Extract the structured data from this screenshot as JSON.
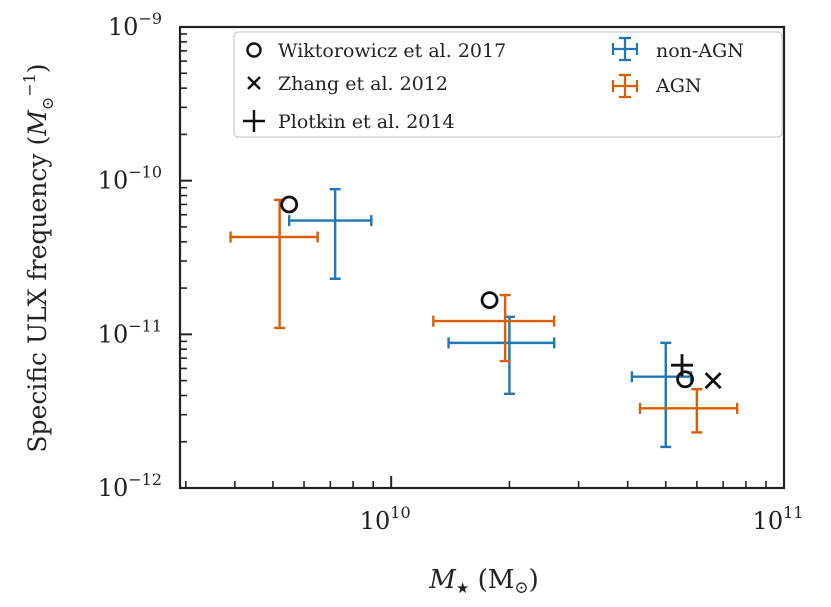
{
  "chart_data": {
    "type": "scatter",
    "title": "",
    "xlabel": "M★ (M⊙)",
    "ylabel": "Specific ULX frequency (M⊙⁻¹)",
    "xscale": "log",
    "yscale": "log",
    "xlim": [
      2900000000.0,
      100000000000.0
    ],
    "ylim": [
      1e-12,
      1e-09
    ],
    "x_ticks": [
      {
        "value": 10000000000.0,
        "label": "10",
        "exp": "10"
      },
      {
        "value": 100000000000.0,
        "label": "10",
        "exp": "11"
      }
    ],
    "y_ticks": [
      {
        "value": 1e-12,
        "label": "10",
        "exp": "−12"
      },
      {
        "value": 1e-11,
        "label": "10",
        "exp": "−11"
      },
      {
        "value": 1e-10,
        "label": "10",
        "exp": "−10"
      },
      {
        "value": 1e-09,
        "label": "10",
        "exp": "−9"
      }
    ],
    "series": [
      {
        "name": "non-AGN",
        "kind": "errorbar",
        "color": "#1f77b4",
        "points": [
          {
            "x": 7200000000.0,
            "xlo": 5500000000.0,
            "xhi": 8900000000.0,
            "y": 5.5e-11,
            "ylo": 2.3e-11,
            "yhi": 8.8e-11
          },
          {
            "x": 20000000000.0,
            "xlo": 14000000000.0,
            "xhi": 26000000000.0,
            "y": 8.8e-12,
            "ylo": 4.1e-12,
            "yhi": 1.3e-11
          },
          {
            "x": 50000000000.0,
            "xlo": 41000000000.0,
            "xhi": 58000000000.0,
            "y": 5.3e-12,
            "ylo": 1.85e-12,
            "yhi": 8.8e-12
          }
        ]
      },
      {
        "name": "AGN",
        "kind": "errorbar",
        "color": "#d95f02",
        "points": [
          {
            "x": 5200000000.0,
            "xlo": 3900000000.0,
            "xhi": 6500000000.0,
            "y": 4.3e-11,
            "ylo": 1.1e-11,
            "yhi": 7.5e-11
          },
          {
            "x": 19500000000.0,
            "xlo": 12800000000.0,
            "xhi": 26000000000.0,
            "y": 1.22e-11,
            "ylo": 6.7e-12,
            "yhi": 1.8e-11
          },
          {
            "x": 60000000000.0,
            "xlo": 43000000000.0,
            "xhi": 76000000000.0,
            "y": 3.3e-12,
            "ylo": 2.3e-12,
            "yhi": 4.4e-12
          }
        ]
      },
      {
        "name": "Wiktorowicz et al. 2017",
        "kind": "marker",
        "marker": "circle",
        "color": "#111111",
        "points": [
          {
            "x": 5500000000.0,
            "y": 7e-11
          },
          {
            "x": 17800000000.0,
            "y": 1.67e-11
          },
          {
            "x": 56000000000.0,
            "y": 5.1e-12
          }
        ]
      },
      {
        "name": "Zhang et al. 2012",
        "kind": "marker",
        "marker": "x",
        "color": "#111111",
        "points": [
          {
            "x": 66000000000.0,
            "y": 5e-12
          }
        ]
      },
      {
        "name": "Plotkin et al. 2014",
        "kind": "marker",
        "marker": "plus",
        "color": "#111111",
        "points": [
          {
            "x": 55000000000.0,
            "y": 6.3e-12
          }
        ]
      }
    ],
    "legend": {
      "placement": "top",
      "left_column": [
        "Wiktorowicz et al. 2017",
        "Zhang et al. 2012",
        "Plotkin et al. 2014"
      ],
      "right_column": [
        "non-AGN",
        "AGN"
      ]
    },
    "grid": false
  }
}
